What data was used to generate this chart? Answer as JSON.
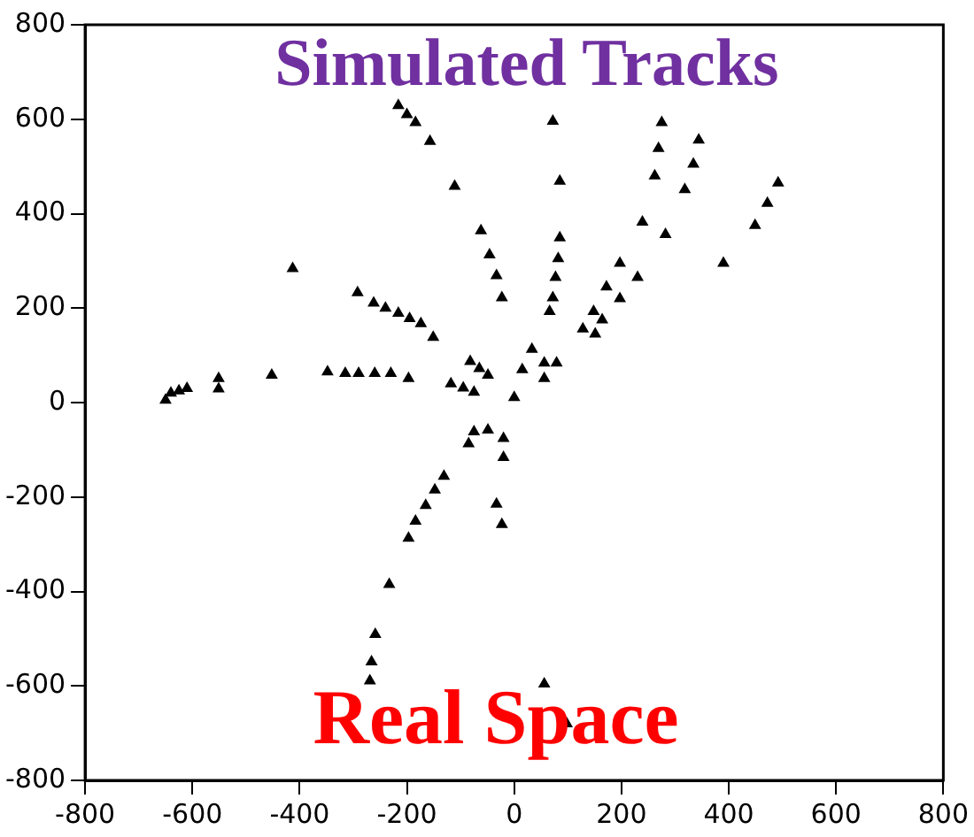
{
  "chart_data": {
    "type": "scatter",
    "title": "Simulated Tracks",
    "annotations": [
      "Real Space"
    ],
    "xlim": [
      -800,
      800
    ],
    "ylim": [
      -800,
      800
    ],
    "xticks": [
      -800,
      -600,
      -400,
      -200,
      0,
      200,
      400,
      600,
      800
    ],
    "yticks": [
      -800,
      -600,
      -400,
      -200,
      0,
      200,
      400,
      600,
      800
    ],
    "grid": false,
    "legend": false,
    "marker": "triangle",
    "series": [
      {
        "color": "#000000",
        "x": [
          -216,
          -200,
          -184,
          -157,
          -111,
          -62,
          -46,
          -33,
          -23,
          -413,
          -292,
          -262,
          -240,
          -216,
          -195,
          -174,
          -151,
          -650,
          -640,
          -625,
          -610,
          -551,
          -551,
          -452,
          -348,
          -315,
          -290,
          -260,
          -230,
          -197,
          -82,
          -65,
          -49,
          -118,
          -95,
          -75,
          0,
          -75,
          -49,
          -85,
          -20,
          -20,
          -131,
          -148,
          -165,
          -184,
          -197,
          -233,
          -259,
          -266,
          -269,
          -33,
          -23,
          56,
          98,
          72,
          85,
          85,
          82,
          77,
          72,
          66,
          56,
          33,
          79,
          56,
          275,
          269,
          262,
          239,
          344,
          334,
          318,
          282,
          197,
          172,
          148,
          128,
          230,
          197,
          164,
          151,
          492,
          472,
          449,
          390,
          15
        ],
        "values": [
          629,
          610,
          593,
          553,
          458,
          364,
          313,
          269,
          222,
          284,
          233,
          211,
          200,
          189,
          178,
          167,
          138,
          5,
          20,
          25,
          30,
          51,
          29,
          58,
          65,
          62,
          62,
          62,
          62,
          51,
          87,
          72,
          58,
          40,
          31,
          22,
          11,
          -62,
          -58,
          -87,
          -76,
          -116,
          -156,
          -185,
          -218,
          -251,
          -287,
          -385,
          -491,
          -549,
          -589,
          -215,
          -258,
          -596,
          -680,
          596,
          469,
          349,
          305,
          265,
          222,
          193,
          84,
          113,
          84,
          51,
          593,
          538,
          480,
          382,
          556,
          505,
          451,
          356,
          295,
          245,
          193,
          156,
          265,
          220,
          175,
          145,
          465,
          422,
          375,
          295,
          70
        ]
      }
    ]
  }
}
